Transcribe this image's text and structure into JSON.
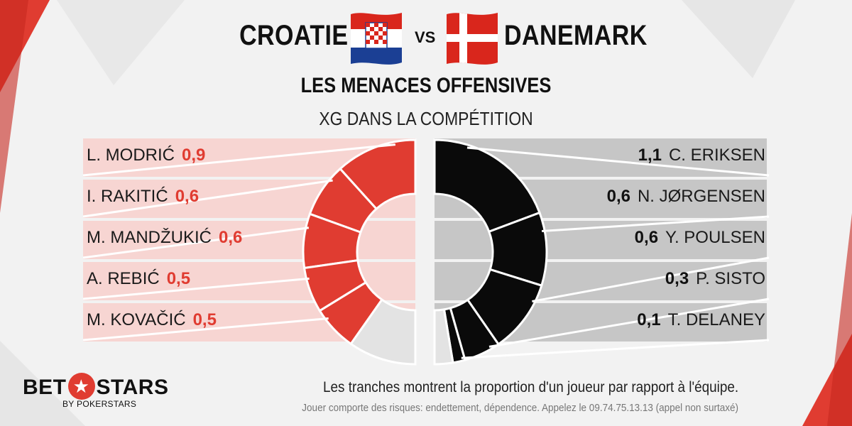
{
  "header": {
    "team_left": "CROATIE",
    "vs": "VS",
    "team_right": "DANEMARK",
    "title": "LES MENACES OFFENSIVES",
    "subtitle": "XG DANS LA COMPÉTITION"
  },
  "chart_data": {
    "type": "pie",
    "title": "LES MENACES OFFENSIVES",
    "subtitle": "XG DANS LA COMPÉTITION",
    "series": [
      {
        "name": "CROATIE",
        "color": "#e03c31",
        "remainder_color": "#e3e3e3",
        "players": [
          {
            "name": "L. MODRIĆ",
            "value": 0.9,
            "label": "0,9"
          },
          {
            "name": "I. RAKITIĆ",
            "value": 0.6,
            "label": "0,6"
          },
          {
            "name": "M. MANDŽUKIĆ",
            "value": 0.6,
            "label": "0,6"
          },
          {
            "name": "A. REBIĆ",
            "value": 0.5,
            "label": "0,5"
          },
          {
            "name": "M. KOVAČIĆ",
            "value": 0.5,
            "label": "0,5"
          }
        ],
        "others": 0.75
      },
      {
        "name": "DANEMARK",
        "color": "#0a0a0a",
        "remainder_color": "#e3e3e3",
        "players": [
          {
            "name": "C. ERIKSEN",
            "value": 1.1,
            "label": "1,1"
          },
          {
            "name": "N. JØRGENSEN",
            "value": 0.6,
            "label": "0,6"
          },
          {
            "name": "Y. POULSEN",
            "value": 0.6,
            "label": "0,6"
          },
          {
            "name": "P. SISTO",
            "value": 0.3,
            "label": "0,3"
          },
          {
            "name": "T. DELANEY",
            "value": 0.1,
            "label": "0,1"
          }
        ],
        "others": 0.15
      }
    ]
  },
  "footer": {
    "note": "Les tranches montrent la proportion d'un joueur par rapport à l'équipe.",
    "disclaimer": "Jouer comporte des risques: endettement, dépendence. Appelez le 09.74.75.13.13 (appel non surtaxé)",
    "logo_left": "BET",
    "logo_right": "STARS",
    "logo_sub": "BY POKERSTARS",
    "logo_star": "★"
  },
  "colors": {
    "accent_red": "#e03c31",
    "panel_left": "#f7d5d2",
    "panel_right": "#c6c6c6"
  },
  "icons": {
    "flag_left": "croatia-flag-icon",
    "flag_right": "denmark-flag-icon"
  }
}
